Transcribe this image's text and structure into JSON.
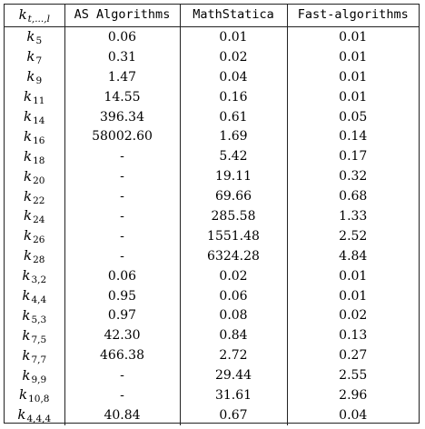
{
  "table": {
    "headers": [
      "k",
      "t,...,l",
      "AS Algorithms",
      "MathStatica",
      "Fast-algorithms"
    ],
    "rows": [
      {
        "sub": "5",
        "as": "0.06",
        "ms": "0.01",
        "fa": "0.01"
      },
      {
        "sub": "7",
        "as": "0.31",
        "ms": "0.02",
        "fa": "0.01"
      },
      {
        "sub": "9",
        "as": "1.47",
        "ms": "0.04",
        "fa": "0.01"
      },
      {
        "sub": "11",
        "as": "14.55",
        "ms": "0.16",
        "fa": "0.01"
      },
      {
        "sub": "14",
        "as": "396.34",
        "ms": "0.61",
        "fa": "0.05"
      },
      {
        "sub": "16",
        "as": "58002.60",
        "ms": "1.69",
        "fa": "0.14"
      },
      {
        "sub": "18",
        "as": "-",
        "ms": "5.42",
        "fa": "0.17"
      },
      {
        "sub": "20",
        "as": "-",
        "ms": "19.11",
        "fa": "0.32"
      },
      {
        "sub": "22",
        "as": "-",
        "ms": "69.66",
        "fa": "0.68"
      },
      {
        "sub": "24",
        "as": "-",
        "ms": "285.58",
        "fa": "1.33"
      },
      {
        "sub": "26",
        "as": "-",
        "ms": "1551.48",
        "fa": "2.52"
      },
      {
        "sub": "28",
        "as": "-",
        "ms": "6324.28",
        "fa": "4.84"
      },
      {
        "sub": "3,2",
        "as": "0.06",
        "ms": "0.02",
        "fa": "0.01"
      },
      {
        "sub": "4,4",
        "as": "0.95",
        "ms": "0.06",
        "fa": "0.01"
      },
      {
        "sub": "5,3",
        "as": "0.97",
        "ms": "0.08",
        "fa": "0.02"
      },
      {
        "sub": "7,5",
        "as": "42.30",
        "ms": "0.84",
        "fa": "0.13"
      },
      {
        "sub": "7,7",
        "as": "466.38",
        "ms": "2.72",
        "fa": "0.27"
      },
      {
        "sub": "9,9",
        "as": "-",
        "ms": "29.44",
        "fa": "2.55"
      },
      {
        "sub": "10,8",
        "as": "-",
        "ms": "31.61",
        "fa": "2.96"
      },
      {
        "sub": "4,4,4",
        "as": "40.84",
        "ms": "0.67",
        "fa": "0.04"
      }
    ]
  }
}
